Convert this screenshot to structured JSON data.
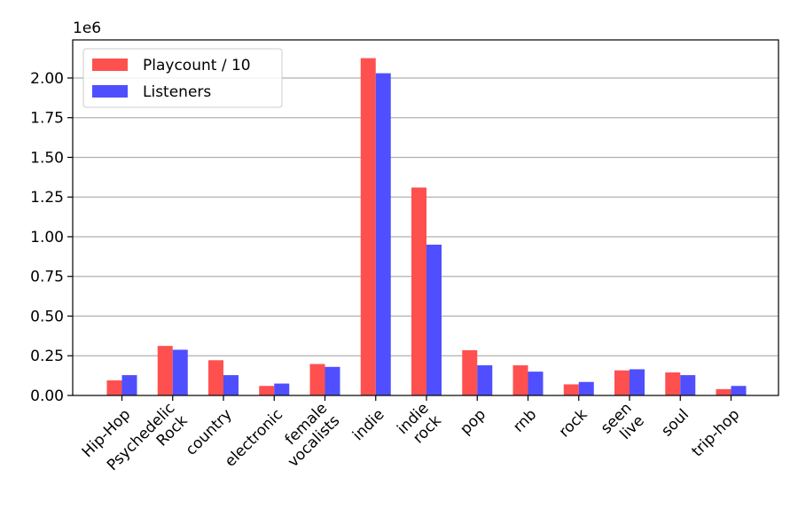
{
  "chart_data": {
    "type": "bar",
    "title": "",
    "xlabel": "",
    "ylabel": "",
    "categories": [
      "Hip-Hop",
      "Psychedelic\nRock",
      "country",
      "electronic",
      "female\nvocalists",
      "indie",
      "indie\nrock",
      "pop",
      "rnb",
      "rock",
      "seen\nlive",
      "soul",
      "trip-hop"
    ],
    "series": [
      {
        "name": "Playcount / 10",
        "color": "#ff5050",
        "values": [
          95000,
          312000,
          222000,
          60000,
          198000,
          2125000,
          1310000,
          285000,
          190000,
          70000,
          158000,
          145000,
          40000
        ]
      },
      {
        "name": "Listeners",
        "color": "#4f4fff",
        "values": [
          128000,
          288000,
          128000,
          75000,
          180000,
          2030000,
          950000,
          190000,
          150000,
          85000,
          165000,
          128000,
          60000
        ]
      }
    ],
    "ylim": [
      0,
      2240000
    ],
    "yticks": [
      0,
      250000,
      500000,
      750000,
      1000000,
      1250000,
      1500000,
      1750000,
      2000000
    ],
    "ytick_labels": [
      "0.00",
      "0.25",
      "0.50",
      "0.75",
      "1.00",
      "1.25",
      "1.50",
      "1.75",
      "2.00"
    ],
    "y_offset_label": "1e6",
    "grid": "y",
    "legend_position": "top-left"
  }
}
